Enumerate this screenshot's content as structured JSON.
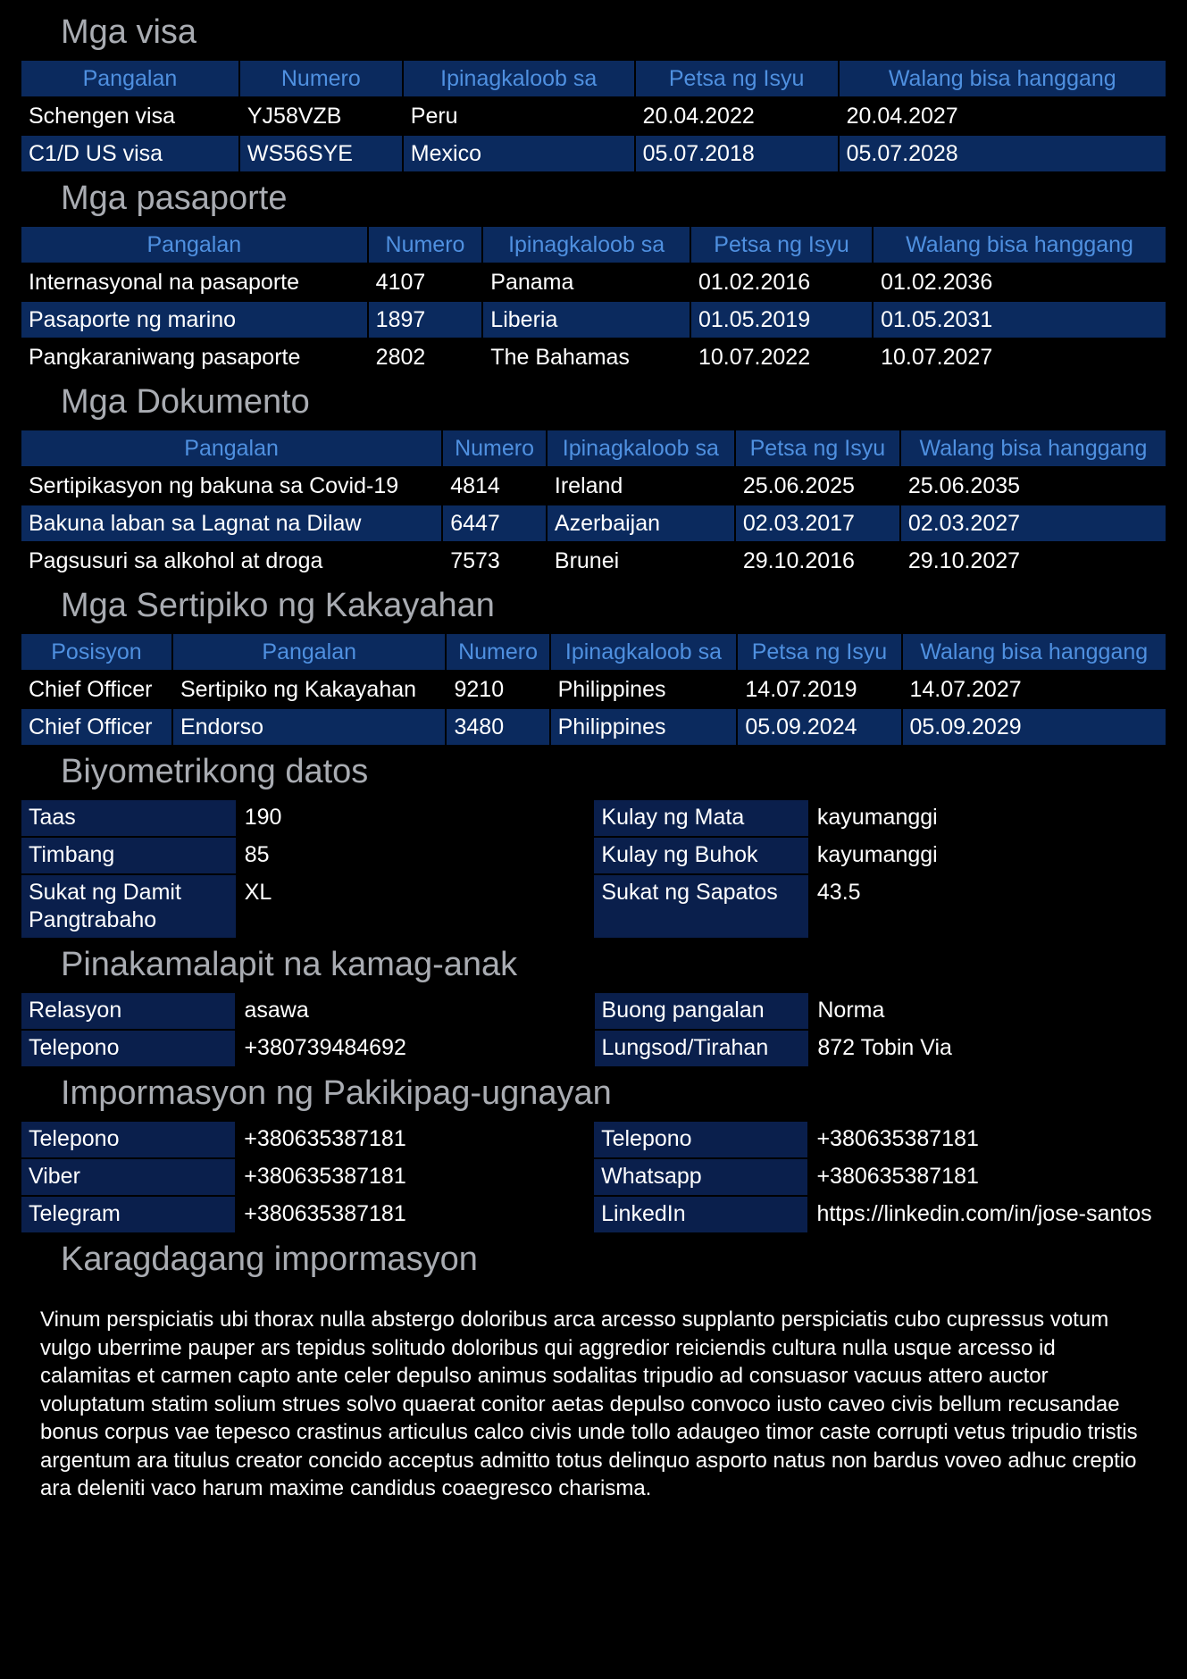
{
  "sections": {
    "visa": {
      "title": "Mga visa",
      "headers": [
        "Pangalan",
        "Numero",
        "Ipinagkaloob sa",
        "Petsa ng Isyu",
        "Walang bisa hanggang"
      ],
      "rows": [
        [
          "Schengen visa",
          "YJ58VZB",
          "Peru",
          "20.04.2022",
          "20.04.2027"
        ],
        [
          "C1/D US visa",
          "WS56SYE",
          "Mexico",
          "05.07.2018",
          "05.07.2028"
        ]
      ]
    },
    "passports": {
      "title": "Mga pasaporte",
      "headers": [
        "Pangalan",
        "Numero",
        "Ipinagkaloob sa",
        "Petsa ng Isyu",
        "Walang bisa hanggang"
      ],
      "rows": [
        [
          "Internasyonal na pasaporte",
          "4107",
          "Panama",
          "01.02.2016",
          "01.02.2036"
        ],
        [
          "Pasaporte ng marino",
          "1897",
          "Liberia",
          "01.05.2019",
          "01.05.2031"
        ],
        [
          "Pangkaraniwang pasaporte",
          "2802",
          "The Bahamas",
          "10.07.2022",
          "10.07.2027"
        ]
      ]
    },
    "documents": {
      "title": "Mga Dokumento",
      "headers": [
        "Pangalan",
        "Numero",
        "Ipinagkaloob sa",
        "Petsa ng Isyu",
        "Walang bisa hanggang"
      ],
      "rows": [
        [
          "Sertipikasyon ng bakuna sa Covid-19",
          "4814",
          "Ireland",
          "25.06.2025",
          "25.06.2035"
        ],
        [
          "Bakuna laban sa Lagnat na Dilaw",
          "6447",
          "Azerbaijan",
          "02.03.2017",
          "02.03.2027"
        ],
        [
          "Pagsusuri sa alkohol at droga",
          "7573",
          "Brunei",
          "29.10.2016",
          "29.10.2027"
        ]
      ]
    },
    "certificates": {
      "title": "Mga Sertipiko ng Kakayahan",
      "headers": [
        "Posisyon",
        "Pangalan",
        "Numero",
        "Ipinagkaloob sa",
        "Petsa ng Isyu",
        "Walang bisa hanggang"
      ],
      "rows": [
        [
          "Chief Officer",
          "Sertipiko ng Kakayahan",
          "9210",
          "Philippines",
          "14.07.2019",
          "14.07.2027"
        ],
        [
          "Chief Officer",
          "Endorso",
          "3480",
          "Philippines",
          "05.09.2024",
          "05.09.2029"
        ]
      ]
    },
    "biometrics": {
      "title": "Biyometrikong datos",
      "rows": [
        [
          "Taas",
          "190",
          "Kulay ng Mata",
          "kayumanggi"
        ],
        [
          "Timbang",
          "85",
          "Kulay ng Buhok",
          "kayumanggi"
        ],
        [
          "Sukat ng Damit Pangtrabaho",
          "XL",
          "Sukat ng Sapatos",
          "43.5"
        ]
      ]
    },
    "kin": {
      "title": "Pinakamalapit na kamag-anak",
      "rows": [
        [
          "Relasyon",
          "asawa",
          "Buong pangalan",
          "Norma"
        ],
        [
          "Telepono",
          "+380739484692",
          "Lungsod/Tirahan",
          "872 Tobin Via"
        ]
      ]
    },
    "contact": {
      "title": "Impormasyon ng Pakikipag-ugnayan",
      "rows": [
        [
          "Telepono",
          "+380635387181",
          "Telepono",
          "+380635387181"
        ],
        [
          "Viber",
          "+380635387181",
          "Whatsapp",
          "+380635387181"
        ],
        [
          "Telegram",
          "+380635387181",
          "LinkedIn",
          "https://linkedin.com/in/jose-santos"
        ]
      ]
    },
    "additional": {
      "title": "Karagdagang impormasyon",
      "text": "Vinum perspiciatis ubi thorax nulla abstergo doloribus arca arcesso supplanto perspiciatis cubo cupressus votum vulgo uberrime pauper ars tepidus solitudo doloribus qui aggredior reiciendis cultura nulla usque arcesso id calamitas et carmen capto ante celer depulso animus sodalitas tripudio ad consuasor vacuus attero auctor voluptatum statim solium strues solvo quaerat conitor aetas depulso convoco iusto caveo civis bellum recusandae bonus corpus vae tepesco crastinus articulus calco civis unde tollo adaugeo timor caste corrupti vetus tripudio tristis argentum ara titulus creator concido acceptus admitto totus delinquo asporto natus non bardus voveo adhuc creptio ara deleniti vaco harum maxime candidus coaegresco charisma."
    }
  }
}
